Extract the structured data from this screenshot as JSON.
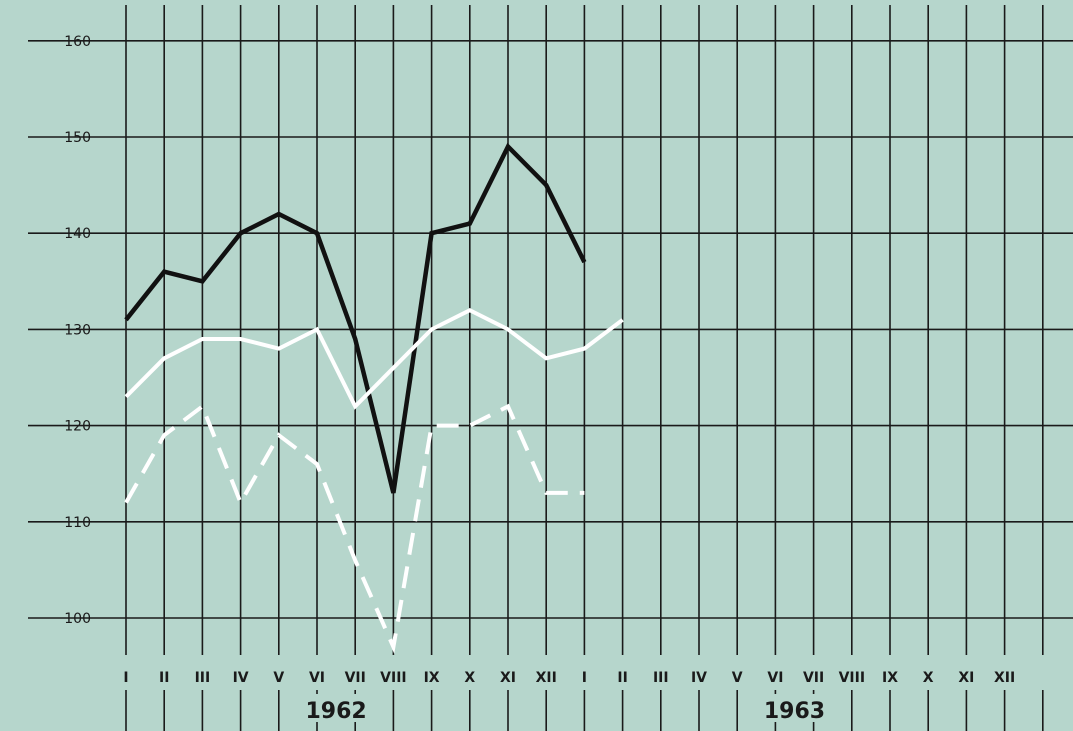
{
  "chart_data": {
    "type": "line",
    "title": "",
    "xlabel": "",
    "ylabel": "",
    "ylim": [
      95,
      162
    ],
    "y_ticks": [
      100,
      110,
      120,
      130,
      140,
      150,
      160
    ],
    "grid": true,
    "x_ticks": [
      "I",
      "II",
      "III",
      "IV",
      "V",
      "VI",
      "VII",
      "VIII",
      "IX",
      "X",
      "XI",
      "XII",
      "I",
      "II",
      "III",
      "IV",
      "V",
      "VI",
      "VII",
      "VIII",
      "IX",
      "X",
      "XI",
      "XII"
    ],
    "year_labels": [
      {
        "label": "1962",
        "month_index": 5.5
      },
      {
        "label": "1963",
        "month_index": 17.5
      }
    ],
    "series": [
      {
        "style": "solid",
        "color": "#111111",
        "points": [
          [
            0,
            131
          ],
          [
            1,
            136
          ],
          [
            2,
            135
          ],
          [
            3,
            140
          ],
          [
            4,
            142
          ],
          [
            5,
            140
          ],
          [
            6,
            129
          ],
          [
            7,
            113
          ],
          [
            8,
            140
          ],
          [
            9,
            141
          ],
          [
            10,
            149
          ],
          [
            11,
            145
          ],
          [
            12,
            137
          ]
        ]
      },
      {
        "style": "solid",
        "color": "#ffffff",
        "points": [
          [
            0,
            123
          ],
          [
            1,
            127
          ],
          [
            2,
            129
          ],
          [
            3,
            129
          ],
          [
            4,
            128
          ],
          [
            5,
            130
          ],
          [
            6,
            122
          ],
          [
            7,
            126
          ],
          [
            8,
            130
          ],
          [
            9,
            132
          ],
          [
            10,
            130
          ],
          [
            11,
            127
          ],
          [
            12,
            128
          ],
          [
            13,
            131
          ]
        ]
      },
      {
        "style": "dashed",
        "color": "#ffffff",
        "points": [
          [
            0,
            112
          ],
          [
            1,
            119
          ],
          [
            2,
            122
          ],
          [
            3,
            112
          ],
          [
            4,
            119
          ],
          [
            5,
            116
          ],
          [
            6,
            106
          ],
          [
            7,
            97
          ],
          [
            8,
            120
          ],
          [
            9,
            120
          ],
          [
            10,
            122
          ],
          [
            11,
            113
          ],
          [
            12,
            113
          ]
        ]
      }
    ]
  },
  "colors": {
    "background": "#b6d6cc",
    "grid": "#1a1a1a",
    "tick_text": "#1a1a1a"
  }
}
